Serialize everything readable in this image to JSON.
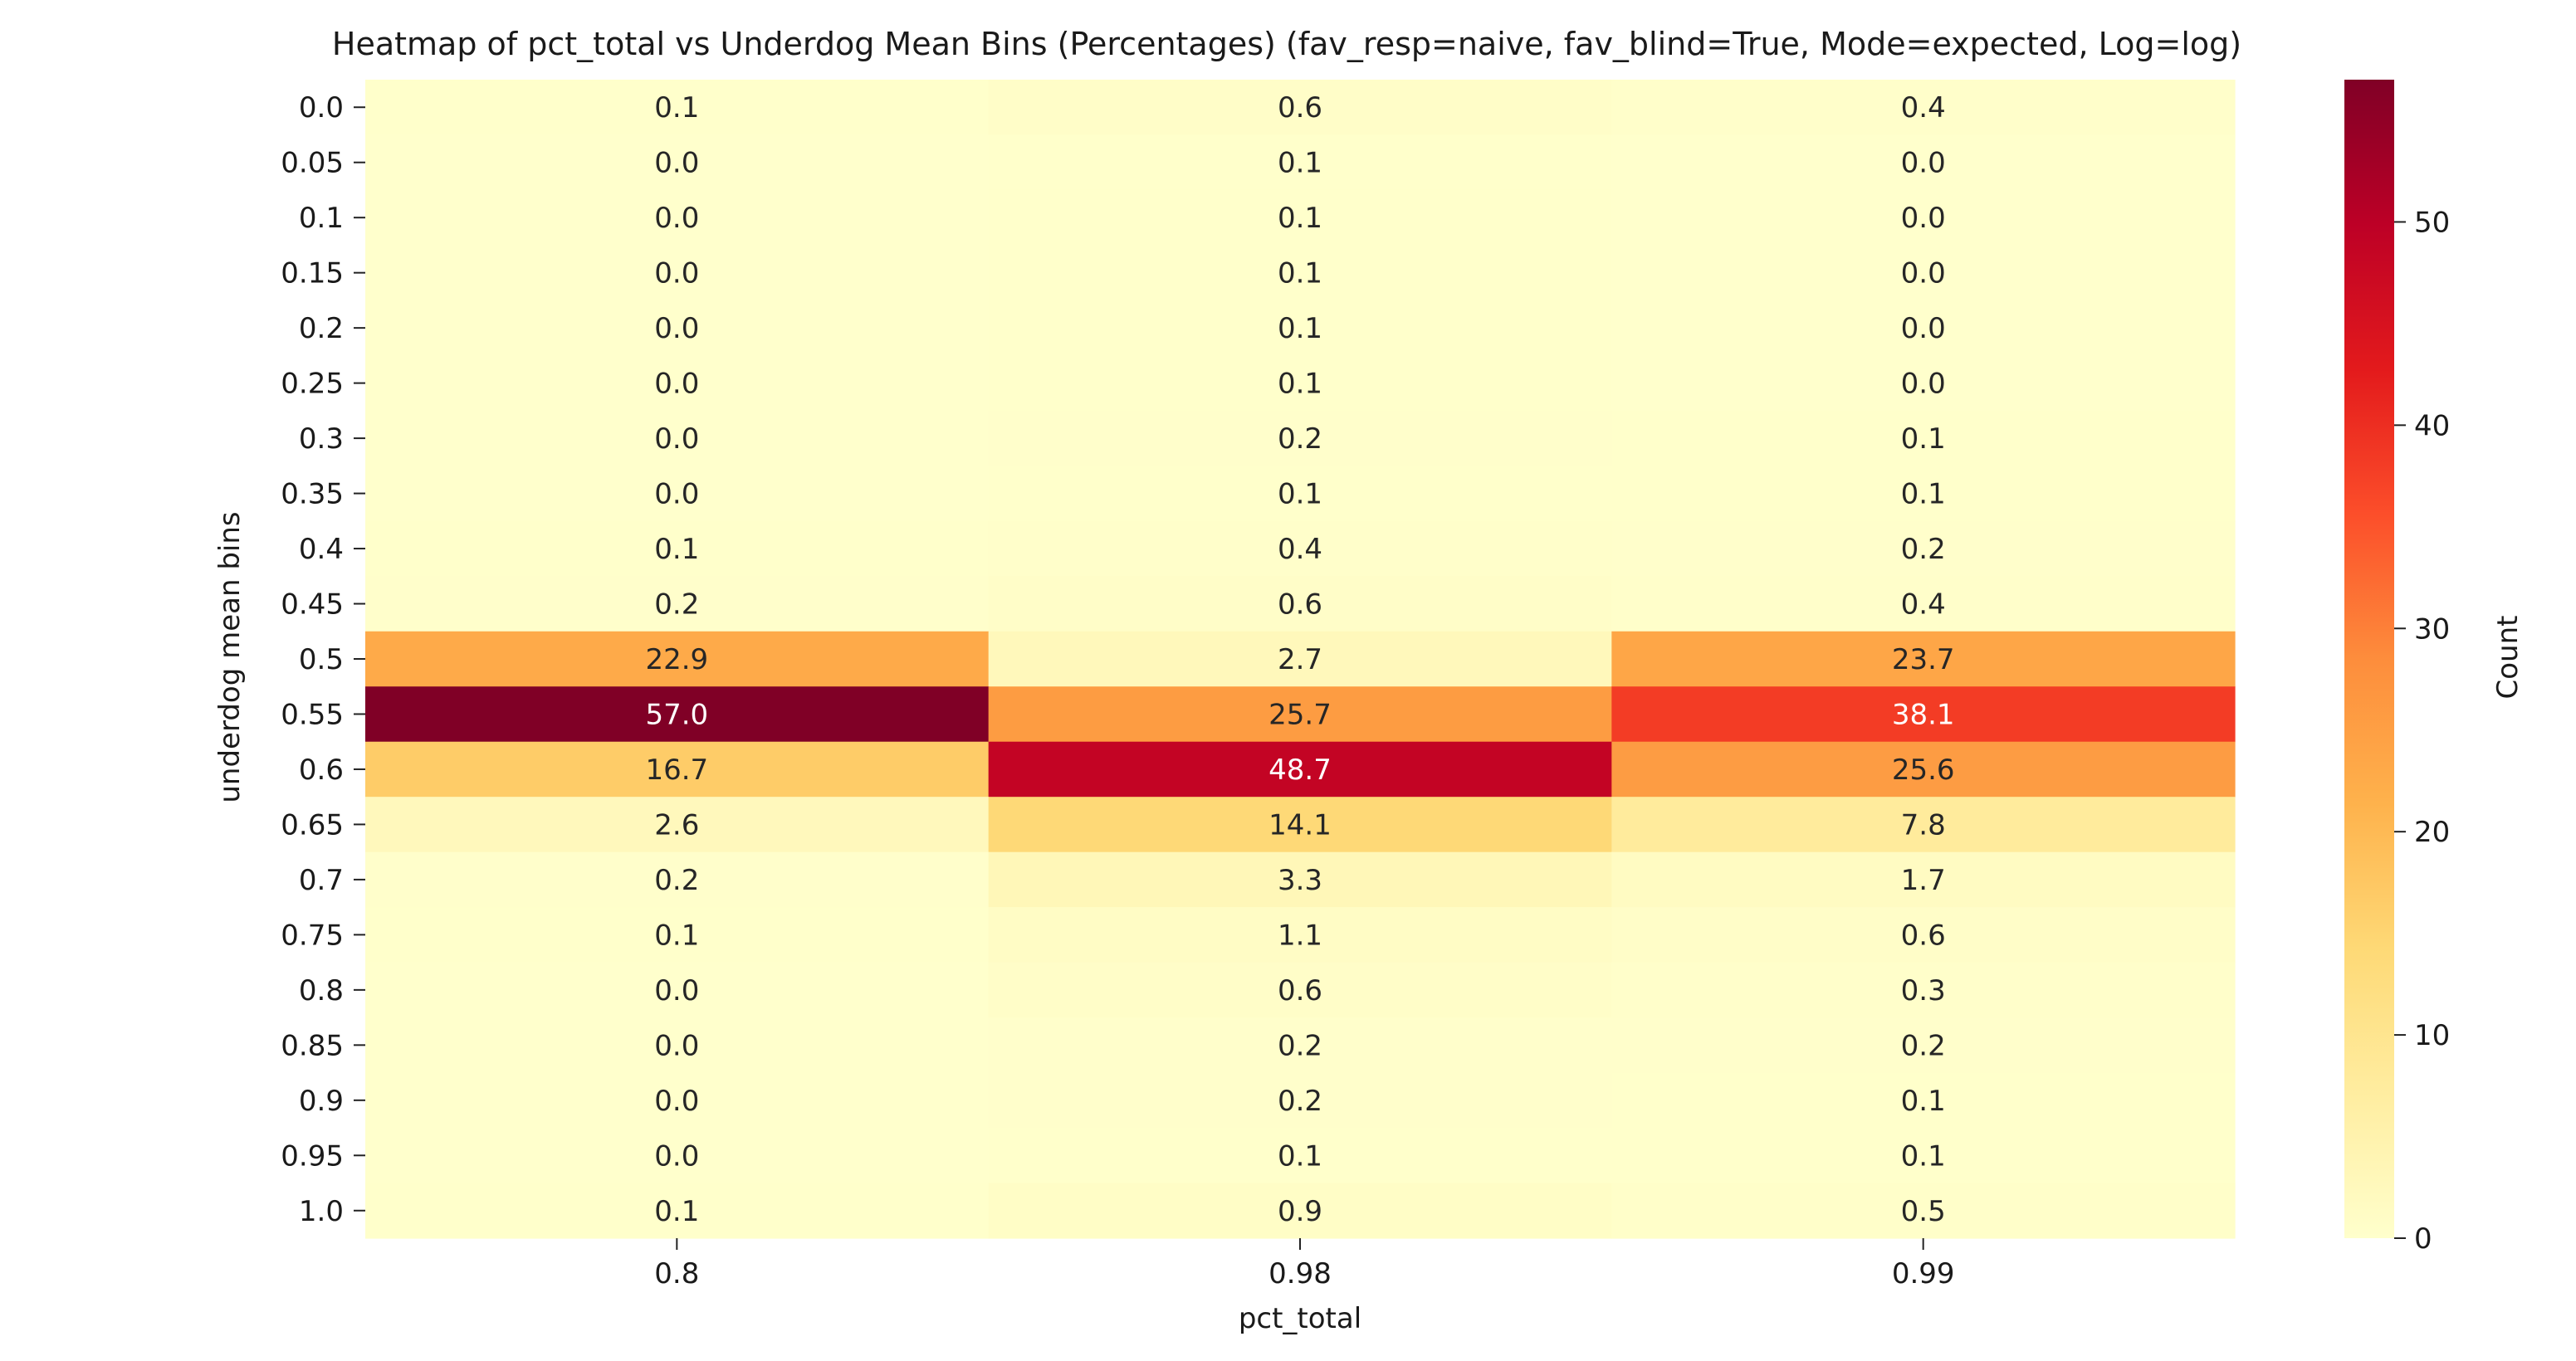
{
  "chart_data": {
    "type": "heatmap",
    "title": "Heatmap of pct_total vs Underdog Mean Bins (Percentages)  (fav_resp=naive, fav_blind=True, Mode=expected, Log=log)",
    "xlabel": "pct_total",
    "ylabel": "underdog mean bins",
    "x_categories": [
      "0.8",
      "0.98",
      "0.99"
    ],
    "y_categories": [
      "0.0",
      "0.05",
      "0.1",
      "0.15",
      "0.2",
      "0.25",
      "0.3",
      "0.35",
      "0.4",
      "0.45",
      "0.5",
      "0.55",
      "0.6",
      "0.65",
      "0.7",
      "0.75",
      "0.8",
      "0.85",
      "0.9",
      "0.95",
      "1.0"
    ],
    "values": [
      [
        0.1,
        0.6,
        0.4
      ],
      [
        0.0,
        0.1,
        0.0
      ],
      [
        0.0,
        0.1,
        0.0
      ],
      [
        0.0,
        0.1,
        0.0
      ],
      [
        0.0,
        0.1,
        0.0
      ],
      [
        0.0,
        0.1,
        0.0
      ],
      [
        0.0,
        0.2,
        0.1
      ],
      [
        0.0,
        0.1,
        0.1
      ],
      [
        0.1,
        0.4,
        0.2
      ],
      [
        0.2,
        0.6,
        0.4
      ],
      [
        22.9,
        2.7,
        23.7
      ],
      [
        57.0,
        25.7,
        38.1
      ],
      [
        16.7,
        48.7,
        25.6
      ],
      [
        2.6,
        14.1,
        7.8
      ],
      [
        0.2,
        3.3,
        1.7
      ],
      [
        0.1,
        1.1,
        0.6
      ],
      [
        0.0,
        0.6,
        0.3
      ],
      [
        0.0,
        0.2,
        0.2
      ],
      [
        0.0,
        0.2,
        0.1
      ],
      [
        0.0,
        0.1,
        0.1
      ],
      [
        0.1,
        0.9,
        0.5
      ]
    ],
    "colorbar": {
      "label": "Count",
      "colormap": "YlOrRd",
      "range": [
        0,
        57.0
      ],
      "ticks": [
        "0",
        "10",
        "20",
        "30",
        "40",
        "50"
      ]
    },
    "grid": false,
    "colors": {
      "scale": [
        "#ffffcc",
        "#ffeda0",
        "#fed976",
        "#feb24c",
        "#fd8d3c",
        "#fc4e2a",
        "#e31a1c",
        "#bd0026",
        "#800026"
      ],
      "dark_cell_text": "#ffffff",
      "light_cell_text": "#262626"
    }
  }
}
